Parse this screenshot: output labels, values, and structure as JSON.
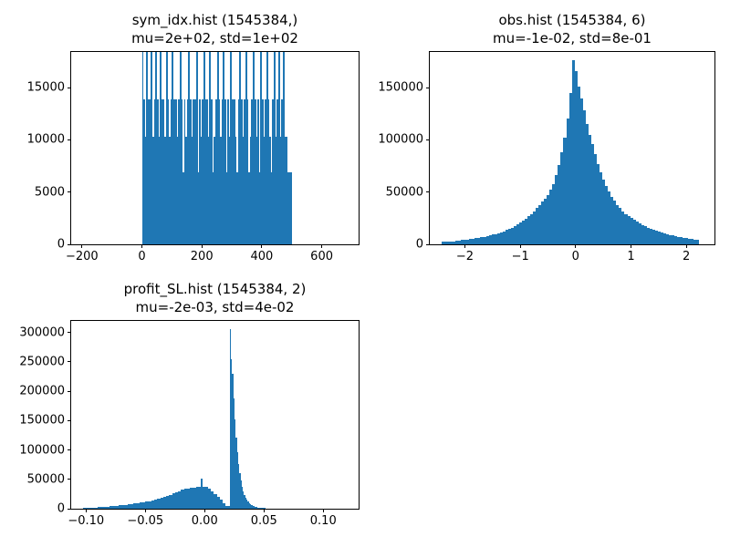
{
  "figure": {
    "background": "#ffffff",
    "bar_color": "#1f77b4",
    "spine_color": "#000000"
  },
  "chart_data": [
    {
      "type": "bar",
      "id": "sym_idx",
      "title": "sym_idx.hist (1545384,)",
      "subtitle": "mu=2e+02, std=1e+02",
      "xlim": [
        -236,
        723
      ],
      "ylim": [
        0,
        18410
      ],
      "grid": false,
      "legend": null,
      "xticks": [
        {
          "v": -200,
          "label": "−200"
        },
        {
          "v": 0,
          "label": "0"
        },
        {
          "v": 200,
          "label": "200"
        },
        {
          "v": 400,
          "label": "400"
        },
        {
          "v": 600,
          "label": "600"
        }
      ],
      "yticks": [
        {
          "v": 0,
          "label": "0"
        },
        {
          "v": 5000,
          "label": "5000"
        },
        {
          "v": 10000,
          "label": "10000"
        },
        {
          "v": 15000,
          "label": "15000"
        }
      ],
      "segments": [
        {
          "start": 0,
          "binWidth": 5,
          "heights": [
            18410,
            13900,
            10300,
            18410,
            13900,
            13900,
            18410,
            10300,
            13900,
            18410,
            13900,
            10300,
            18410,
            13900,
            13900,
            10300,
            18410,
            13900,
            10300,
            13900,
            18410,
            13900,
            13900,
            10300,
            13900,
            18410,
            13900,
            6900,
            13900,
            10300,
            13900,
            18410,
            13900,
            10300,
            13900,
            13900,
            18410,
            6900,
            13900,
            10300,
            13900,
            18410,
            13900,
            13900,
            10300,
            18410,
            13900,
            6900,
            10300,
            13900,
            18410,
            13900,
            10300,
            13900,
            18410,
            13900,
            6900,
            13900,
            10300,
            18410,
            13900,
            13900,
            10300,
            6900,
            13900,
            18410,
            13900,
            10300,
            13900,
            18410,
            13900,
            6900,
            10300,
            13900,
            18410,
            13900,
            10300,
            13900,
            6900,
            18410,
            13900,
            10300,
            13900,
            18410,
            13900,
            10300,
            6900,
            13900,
            18410,
            10300,
            13900,
            18410,
            10300,
            13900,
            18410,
            10300,
            10300,
            6900,
            6900,
            6900
          ]
        }
      ]
    },
    {
      "type": "bar",
      "id": "obs",
      "title": "obs.hist (1545384, 6)",
      "subtitle": "mu=-1e-02, std=8e-01",
      "xlim": [
        -2.635,
        2.509
      ],
      "ylim": [
        0,
        184100
      ],
      "grid": false,
      "legend": null,
      "xticks": [
        {
          "v": -2,
          "label": "−2"
        },
        {
          "v": -1,
          "label": "−1"
        },
        {
          "v": 0,
          "label": "0"
        },
        {
          "v": 1,
          "label": "1"
        },
        {
          "v": 2,
          "label": "2"
        }
      ],
      "yticks": [
        {
          "v": 0,
          "label": "0"
        },
        {
          "v": 50000,
          "label": "50000"
        },
        {
          "v": 100000,
          "label": "100000"
        },
        {
          "v": 150000,
          "label": "150000"
        }
      ],
      "segments": [
        {
          "start": -2.42,
          "binWidth": 0.05,
          "heights": [
            2200,
            2400,
            2600,
            2800,
            3000,
            3300,
            3600,
            4000,
            4300,
            4700,
            5000,
            5400,
            5800,
            6300,
            6800,
            7300,
            7900,
            8500,
            9200,
            9900,
            10700,
            11600,
            12600,
            13700,
            14800,
            16100,
            17500,
            19000,
            20700,
            22500,
            24500,
            26700,
            29000,
            31700,
            34600,
            37700,
            41000,
            44000,
            47500,
            52000,
            58000,
            66000,
            76000,
            88000,
            102000,
            120000,
            145000,
            176000,
            166000,
            151000,
            140000,
            128000,
            115000,
            105000,
            96000,
            86000,
            77000,
            69000,
            62000,
            56000,
            50500,
            45800,
            41500,
            37800,
            34500,
            31500,
            29000,
            26800,
            25000,
            23200,
            21500,
            20000,
            18500,
            17200,
            16000,
            14800,
            13800,
            12800,
            11900,
            11100,
            10300,
            9600,
            8900,
            8300,
            7800,
            7300,
            6800,
            6400,
            6000,
            5500,
            5000,
            4600,
            4400
          ]
        }
      ]
    },
    {
      "type": "bar",
      "id": "profit_SL",
      "title": "profit_SL.hist (1545384, 2)",
      "subtitle": "mu=-2e-03, std=4e-02",
      "xlim": [
        -0.1125,
        0.1298
      ],
      "ylim": [
        0,
        319500
      ],
      "grid": false,
      "legend": null,
      "xticks": [
        {
          "v": -0.1,
          "label": "−0.10"
        },
        {
          "v": -0.05,
          "label": "−0.05"
        },
        {
          "v": 0.0,
          "label": "0.00"
        },
        {
          "v": 0.05,
          "label": "0.05"
        },
        {
          "v": 0.1,
          "label": "0.10"
        }
      ],
      "yticks": [
        {
          "v": 0,
          "label": "0"
        },
        {
          "v": 50000,
          "label": "50000"
        },
        {
          "v": 100000,
          "label": "100000"
        },
        {
          "v": 150000,
          "label": "150000"
        },
        {
          "v": 200000,
          "label": "200000"
        },
        {
          "v": 250000,
          "label": "250000"
        },
        {
          "v": 300000,
          "label": "300000"
        }
      ],
      "segments": [
        {
          "start": -0.1075,
          "binWidth": 0.0025,
          "heights": [
            250,
            500,
            800,
            1100,
            1400,
            1700,
            2000,
            2400,
            2800,
            3200,
            3600,
            4100,
            4600,
            5100,
            5600,
            6100,
            6700,
            7300,
            7900,
            8600,
            9300,
            10100,
            11000,
            12000,
            13100,
            14300,
            15600,
            17000,
            18600,
            20300,
            22100,
            24000,
            26000,
            28000,
            30000,
            31800,
            33400,
            34700,
            35600,
            36200,
            36800,
            37300,
            37800,
            36500,
            33500,
            29500,
            25000,
            20000,
            15000,
            9500,
            5000
          ]
        },
        {
          "start": -0.003,
          "binWidth": 0.0012,
          "heights": [
            51500
          ]
        },
        {
          "start": 0.02,
          "binWidth": 0.001,
          "heights": [
            4200,
            306000,
            255000,
            230000,
            188000,
            152000,
            121000,
            96000,
            76000,
            60000,
            47500,
            37500,
            29800,
            23700,
            18900,
            15100,
            12100,
            9700,
            7800,
            6300,
            5100,
            4100,
            3300,
            2700,
            2200,
            1800,
            1500,
            1250,
            1050,
            900,
            780,
            680,
            600,
            530,
            470,
            420,
            380,
            350
          ]
        },
        {
          "start": 0.058,
          "binWidth": 0.0025,
          "heights": [
            300,
            240,
            190
          ]
        },
        {
          "start": 0.122,
          "binWidth": 0.0035,
          "heights": [
            140
          ]
        }
      ]
    }
  ]
}
